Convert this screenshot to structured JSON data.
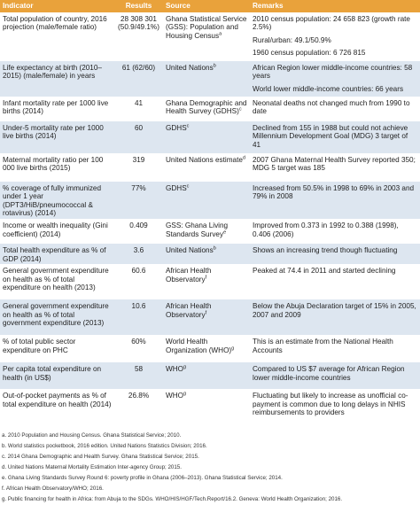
{
  "table": {
    "columns": [
      "Indicator",
      "Results",
      "Source",
      "Remarks"
    ],
    "rows": [
      {
        "indicator": "Total population of country, 2016 projection (male/female ratio)",
        "result": "28 308 301 (50.9/49.1%)",
        "source": "Ghana Statistical Service (GSS): Population and Housing Census",
        "note": "a",
        "remarks": [
          "2010 census population: 24 658 823 (growth rate 2.5%)",
          "Rural/urban: 49.1/50.9%",
          "1960 census population: 6 726 815"
        ]
      },
      {
        "indicator": "Life expectancy at birth (2010–2015) (male/female) in years",
        "result": "61 (62/60)",
        "source": "United Nations",
        "note": "b",
        "remarks": [
          "African Region lower middle-income countries: 58 years",
          "World lower middle-income countries: 66 years"
        ]
      },
      {
        "indicator": "Infant mortality rate per 1000 live births (2014)",
        "result": "41",
        "source": "Ghana Demographic and Health Survey (GDHS)",
        "note": "c",
        "remarks": [
          "Neonatal deaths not changed much from 1990 to date"
        ]
      },
      {
        "indicator": "Under-5 mortality rate per 1000 live births (2014)",
        "result": "60",
        "source": "GDHS",
        "note": "c",
        "remarks": [
          "Declined from 155 in 1988 but could not achieve Millennium Development Goal (MDG) 3 target of 41"
        ]
      },
      {
        "indicator": "Maternal mortality ratio per 100 000 live births (2015)",
        "result": "319",
        "source": "United Nations estimate",
        "note": "d",
        "remarks": [
          "2007 Ghana Maternal Health Survey reported 350; MDG 5 target was 185"
        ]
      },
      {
        "indicator": "% coverage of fully immunized under 1 year (DPT3/HiB/pneumococcal & rotavirus) (2014)",
        "result": "77%",
        "source": "GDHS",
        "note": "c",
        "remarks": [
          "Increased from 50.5% in 1998 to 69% in 2003 and 79% in 2008"
        ]
      },
      {
        "indicator": "Income or wealth inequality (Gini coefficient) (2014)",
        "result": "0.409",
        "source": "GSS: Ghana Living Standards Survey",
        "note": "e",
        "remarks": [
          "Improved from 0.373 in 1992 to 0.388 (1998), 0.406 (2006)"
        ]
      },
      {
        "indicator": "Total health expenditure as % of GDP (2014)",
        "result": "3.6",
        "source": "United Nations",
        "note": "b",
        "remarks": [
          "Shows an increasing trend though fluctuating"
        ]
      },
      {
        "indicator": "General government expenditure on health as % of total expenditure on health (2013)",
        "result": "60.6",
        "source": "African Health Observatory",
        "note": "f",
        "remarks": [
          "Peaked at 74.4 in 2011 and started declining"
        ]
      },
      {
        "indicator": "General government expenditure on health as % of total government expenditure (2013)",
        "result": "10.6",
        "source": "African Health Observatory",
        "note": "f",
        "remarks": [
          "Below the Abuja Declaration target of 15% in 2005, 2007 and 2009"
        ]
      },
      {
        "indicator": "% of total public sector expenditure on PHC",
        "result": "60%",
        "source": "World Health Organization (WHO)",
        "note": "g",
        "remarks": [
          "This is an estimate from the National Health Accounts"
        ]
      },
      {
        "indicator": "Per capita total expenditure on health (in US$)",
        "result": "58",
        "source": "WHO",
        "note": "g",
        "remarks": [
          "Compared to US $7 average for African Region lower middle-income countries"
        ]
      },
      {
        "indicator": "Out-of-pocket payments as % of total expenditure on health (2014)",
        "result": "26.8%",
        "source": "WHO",
        "note": "g",
        "remarks": [
          "Fluctuating but likely to increase as unofficial co-payment is common due to long delays in NHIS reimbursements to providers"
        ]
      }
    ]
  },
  "footnotes": [
    {
      "mark": "a.",
      "text": "2010 Population and Housing Census. Ghana Statistical Service; 2010."
    },
    {
      "mark": "b.",
      "text": "World statistics pocketbook, 2016 edition. United Nations Statistics Division; 2016."
    },
    {
      "mark": "c.",
      "text": "2014 Ghana Demographic and Health Survey. Ghana Statistical Service; 2015."
    },
    {
      "mark": "d.",
      "text": "United Nations Maternal Mortality Estimation Inter-agency Group; 2015."
    },
    {
      "mark": "e.",
      "text": "Ghana Living Standards Survey Round 6: poverty profile in Ghana (2006–2013). Ghana Statistical Service; 2014."
    },
    {
      "mark": "f.",
      "text": "African Health Observatory/WHO; 2016."
    },
    {
      "mark": "g.",
      "text": "Public financing for health in Africa: from Abuja to the SDGs. WHO/HIS/HGF/Tech.Report/16.2. Geneva: World Health Organization; 2016."
    }
  ]
}
